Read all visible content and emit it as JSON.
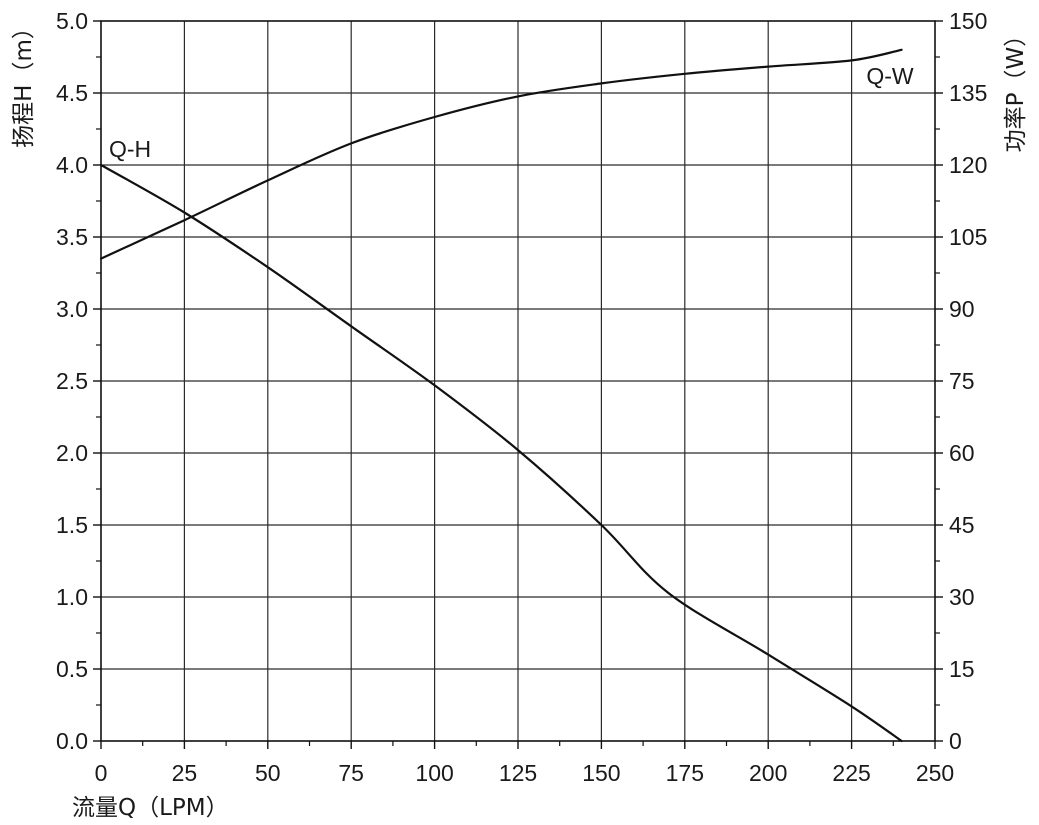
{
  "chart_data": {
    "type": "line",
    "xlabel": "流量Q（LPM）",
    "ylabel_left": "扬程H（m）",
    "ylabel_right": "功率P（W）",
    "xlim": [
      0,
      250
    ],
    "ylim_left": [
      0,
      5
    ],
    "ylim_right": [
      0,
      150
    ],
    "x_ticks": [
      "0",
      "25",
      "50",
      "75",
      "100",
      "125",
      "150",
      "175",
      "200",
      "225",
      "250"
    ],
    "y_left_ticks": [
      "0.0",
      "0.5",
      "1.0",
      "1.5",
      "2.0",
      "2.5",
      "3.0",
      "3.5",
      "4.0",
      "4.5",
      "5.0"
    ],
    "y_right_ticks": [
      "0",
      "15",
      "30",
      "45",
      "60",
      "75",
      "90",
      "105",
      "120",
      "135",
      "150"
    ],
    "grid": true,
    "series": [
      {
        "name": "Q-H",
        "axis": "left",
        "x": [
          0,
          25,
          50,
          75,
          100,
          125,
          150,
          170,
          200,
          225,
          240
        ],
        "y": [
          4.0,
          3.67,
          3.29,
          2.88,
          2.47,
          2.02,
          1.5,
          1.03,
          0.6,
          0.24,
          0.0
        ]
      },
      {
        "name": "Q-W",
        "axis": "right",
        "x": [
          0,
          25,
          50,
          75,
          100,
          125,
          150,
          175,
          200,
          225,
          240
        ],
        "y": [
          100.5,
          108.5,
          116.8,
          124.5,
          130.0,
          134.3,
          137.0,
          139.0,
          140.5,
          141.8,
          144.0
        ]
      }
    ]
  }
}
